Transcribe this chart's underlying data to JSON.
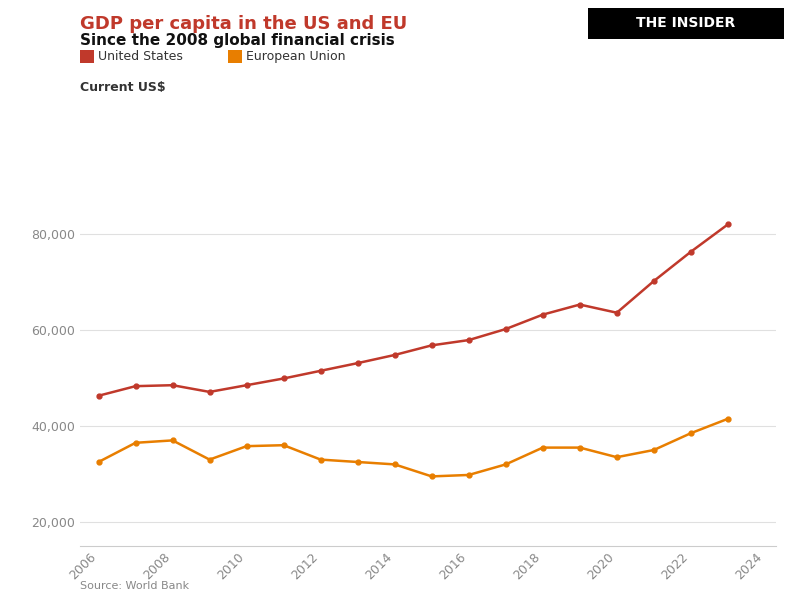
{
  "title": "GDP per capita in the US and EU",
  "subtitle": "Since the 2008 global financial crisis",
  "ylabel": "Current US$",
  "source": "Source: World Bank",
  "us_color": "#c0392b",
  "eu_color": "#e87e00",
  "us_label": "United States",
  "eu_label": "European Union",
  "years": [
    2006,
    2007,
    2008,
    2009,
    2010,
    2011,
    2012,
    2013,
    2014,
    2015,
    2016,
    2017,
    2018,
    2019,
    2020,
    2021,
    2022,
    2023
  ],
  "us_gdp": [
    46300,
    48300,
    48500,
    47100,
    48500,
    49900,
    51500,
    53100,
    54800,
    56800,
    57900,
    60200,
    63200,
    65300,
    63600,
    70200,
    76300,
    82000
  ],
  "eu_gdp": [
    32500,
    36500,
    37000,
    33000,
    35800,
    36000,
    33000,
    32500,
    32000,
    29500,
    29800,
    32000,
    35500,
    35500,
    33500,
    35000,
    38500,
    41500
  ],
  "ylim": [
    15000,
    90000
  ],
  "yticks": [
    20000,
    40000,
    60000,
    80000
  ],
  "xlim": [
    2005.5,
    2024.3
  ],
  "xticks": [
    2006,
    2008,
    2010,
    2012,
    2014,
    2016,
    2018,
    2020,
    2022,
    2024
  ],
  "background_color": "#ffffff",
  "grid_color": "#e0e0e0"
}
